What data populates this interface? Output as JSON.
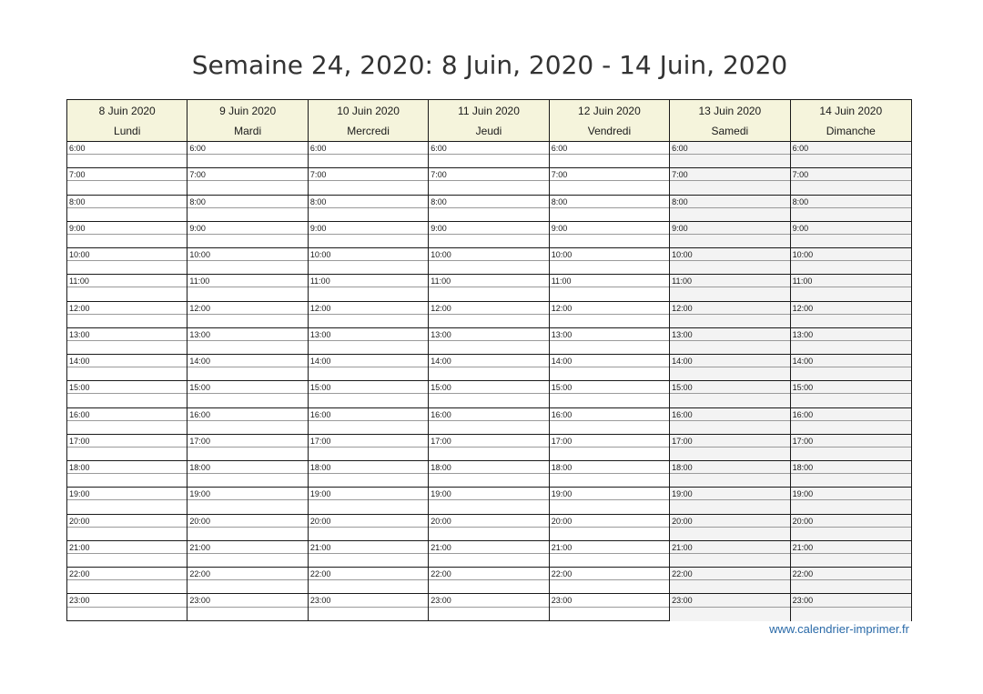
{
  "title": "Semaine 24, 2020: 8 Juin, 2020 - 14 Juin, 2020",
  "days": [
    {
      "date": "8 Juin 2020",
      "name": "Lundi"
    },
    {
      "date": "9 Juin 2020",
      "name": "Mardi"
    },
    {
      "date": "10 Juin 2020",
      "name": "Mercredi"
    },
    {
      "date": "11 Juin 2020",
      "name": "Jeudi"
    },
    {
      "date": "12 Juin 2020",
      "name": "Vendredi"
    },
    {
      "date": "13 Juin 2020",
      "name": "Samedi"
    },
    {
      "date": "14 Juin 2020",
      "name": "Dimanche"
    }
  ],
  "hours": [
    "6:00",
    "7:00",
    "8:00",
    "9:00",
    "10:00",
    "11:00",
    "12:00",
    "13:00",
    "14:00",
    "15:00",
    "16:00",
    "17:00",
    "18:00",
    "19:00",
    "20:00",
    "21:00",
    "22:00",
    "23:00"
  ],
  "footer": {
    "link_text": "www.calendrier-imprimer.fr"
  },
  "colors": {
    "header_bg": "#f5f4dc",
    "weekend_bg": "#f3f3f3",
    "link": "#2a6aa8"
  }
}
